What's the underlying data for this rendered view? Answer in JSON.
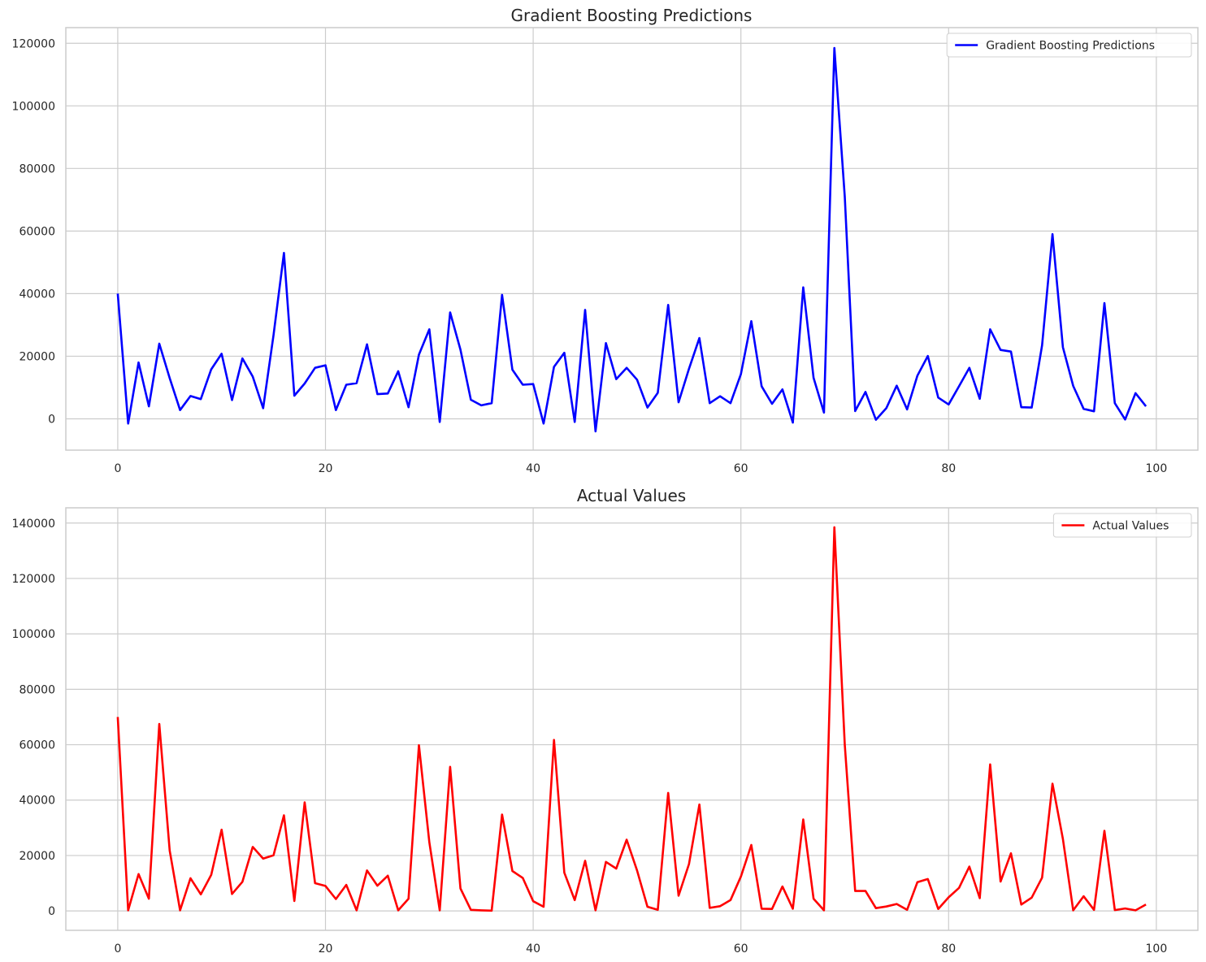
{
  "chart_data": [
    {
      "type": "line",
      "title": "Gradient Boosting Predictions",
      "xlabel": "",
      "ylabel": "",
      "xlim": [
        -5,
        104
      ],
      "ylim": [
        -10000,
        125000
      ],
      "xticks": [
        "0",
        "20",
        "40",
        "60",
        "80",
        "100"
      ],
      "yticks": [
        "0",
        "20000",
        "40000",
        "60000",
        "80000",
        "100000",
        "120000"
      ],
      "grid": true,
      "legend_position": "top-right",
      "series": [
        {
          "name": "Gradient Boosting Predictions",
          "color": "#0000ff",
          "x": [
            0,
            1,
            2,
            3,
            4,
            5,
            6,
            7,
            8,
            9,
            10,
            11,
            12,
            13,
            14,
            15,
            16,
            17,
            18,
            19,
            20,
            21,
            22,
            23,
            24,
            25,
            26,
            27,
            28,
            29,
            30,
            31,
            32,
            33,
            34,
            35,
            36,
            37,
            38,
            39,
            40,
            41,
            42,
            43,
            44,
            45,
            46,
            47,
            48,
            49,
            50,
            51,
            52,
            53,
            54,
            55,
            56,
            57,
            58,
            59,
            60,
            61,
            62,
            63,
            64,
            65,
            66,
            67,
            68,
            69,
            70,
            71,
            72,
            73,
            74,
            75,
            76,
            77,
            78,
            79,
            80,
            81,
            82,
            83,
            84,
            85,
            86,
            87,
            88,
            89,
            90,
            91,
            92,
            93,
            94,
            95,
            96,
            97,
            98,
            99
          ],
          "values": [
            40000,
            -1500,
            18000,
            4000,
            24000,
            13000,
            2800,
            7300,
            6300,
            15800,
            20800,
            6000,
            19300,
            13500,
            3400,
            26800,
            53000,
            7400,
            11300,
            16300,
            17100,
            2800,
            10900,
            11400,
            23800,
            7900,
            8100,
            15200,
            3700,
            20500,
            28600,
            -1000,
            34000,
            22100,
            6100,
            4300,
            5000,
            39600,
            15700,
            10900,
            11100,
            -1500,
            16600,
            21100,
            -1000,
            34800,
            -4000,
            24200,
            12700,
            16300,
            12500,
            3600,
            8300,
            36400,
            5300,
            16000,
            25800,
            5000,
            7200,
            5000,
            14300,
            31200,
            10400,
            4800,
            9400,
            -1200,
            42000,
            13100,
            2000,
            118500,
            71000,
            2500,
            8600,
            -300,
            3400,
            10600,
            3000,
            13800,
            20100,
            6800,
            4600,
            10400,
            16300,
            6400,
            28600,
            22000,
            21500,
            3700,
            3600,
            23500,
            59000,
            22900,
            10500,
            3200,
            2400,
            37000,
            5000,
            -200,
            8200,
            4000
          ]
        }
      ]
    },
    {
      "type": "line",
      "title": "Actual Values",
      "xlabel": "",
      "ylabel": "",
      "xlim": [
        -5,
        104
      ],
      "ylim": [
        -7000,
        145500
      ],
      "xticks": [
        "0",
        "20",
        "40",
        "60",
        "80",
        "100"
      ],
      "yticks": [
        "0",
        "20000",
        "40000",
        "60000",
        "80000",
        "100000",
        "120000",
        "140000"
      ],
      "grid": true,
      "legend_position": "top-right",
      "series": [
        {
          "name": "Actual Values",
          "color": "#ff0000",
          "x": [
            0,
            1,
            2,
            3,
            4,
            5,
            6,
            7,
            8,
            9,
            10,
            11,
            12,
            13,
            14,
            15,
            16,
            17,
            18,
            19,
            20,
            21,
            22,
            23,
            24,
            25,
            26,
            27,
            28,
            29,
            30,
            31,
            32,
            33,
            34,
            35,
            36,
            37,
            38,
            39,
            40,
            41,
            42,
            43,
            44,
            45,
            46,
            47,
            48,
            49,
            50,
            51,
            52,
            53,
            54,
            55,
            56,
            57,
            58,
            59,
            60,
            61,
            62,
            63,
            64,
            65,
            66,
            67,
            68,
            69,
            70,
            71,
            72,
            73,
            74,
            75,
            76,
            77,
            78,
            79,
            80,
            81,
            82,
            83,
            84,
            85,
            86,
            87,
            88,
            89,
            90,
            91,
            92,
            93,
            94,
            95,
            96,
            97,
            98,
            99
          ],
          "values": [
            70000,
            200,
            13300,
            4400,
            67500,
            21800,
            200,
            11800,
            6000,
            13000,
            29300,
            6100,
            10500,
            23100,
            18900,
            20100,
            34500,
            3600,
            39200,
            10000,
            9000,
            4300,
            9400,
            200,
            14600,
            9100,
            12700,
            200,
            4400,
            59800,
            24800,
            200,
            52000,
            8100,
            400,
            200,
            100,
            34800,
            14400,
            11900,
            3500,
            1500,
            61700,
            13800,
            3900,
            18100,
            200,
            17700,
            15300,
            25700,
            14600,
            1500,
            400,
            42600,
            5500,
            16900,
            38400,
            1100,
            1700,
            3900,
            12400,
            23800,
            800,
            700,
            8800,
            800,
            33000,
            4400,
            200,
            138500,
            60000,
            7200,
            7200,
            1000,
            1600,
            2500,
            400,
            10400,
            11500,
            700,
            4900,
            8300,
            16000,
            4600,
            52900,
            10600,
            20800,
            2300,
            4800,
            12000,
            45900,
            26000,
            200,
            5300,
            400,
            28900,
            300,
            900,
            200,
            2300
          ]
        }
      ]
    }
  ]
}
